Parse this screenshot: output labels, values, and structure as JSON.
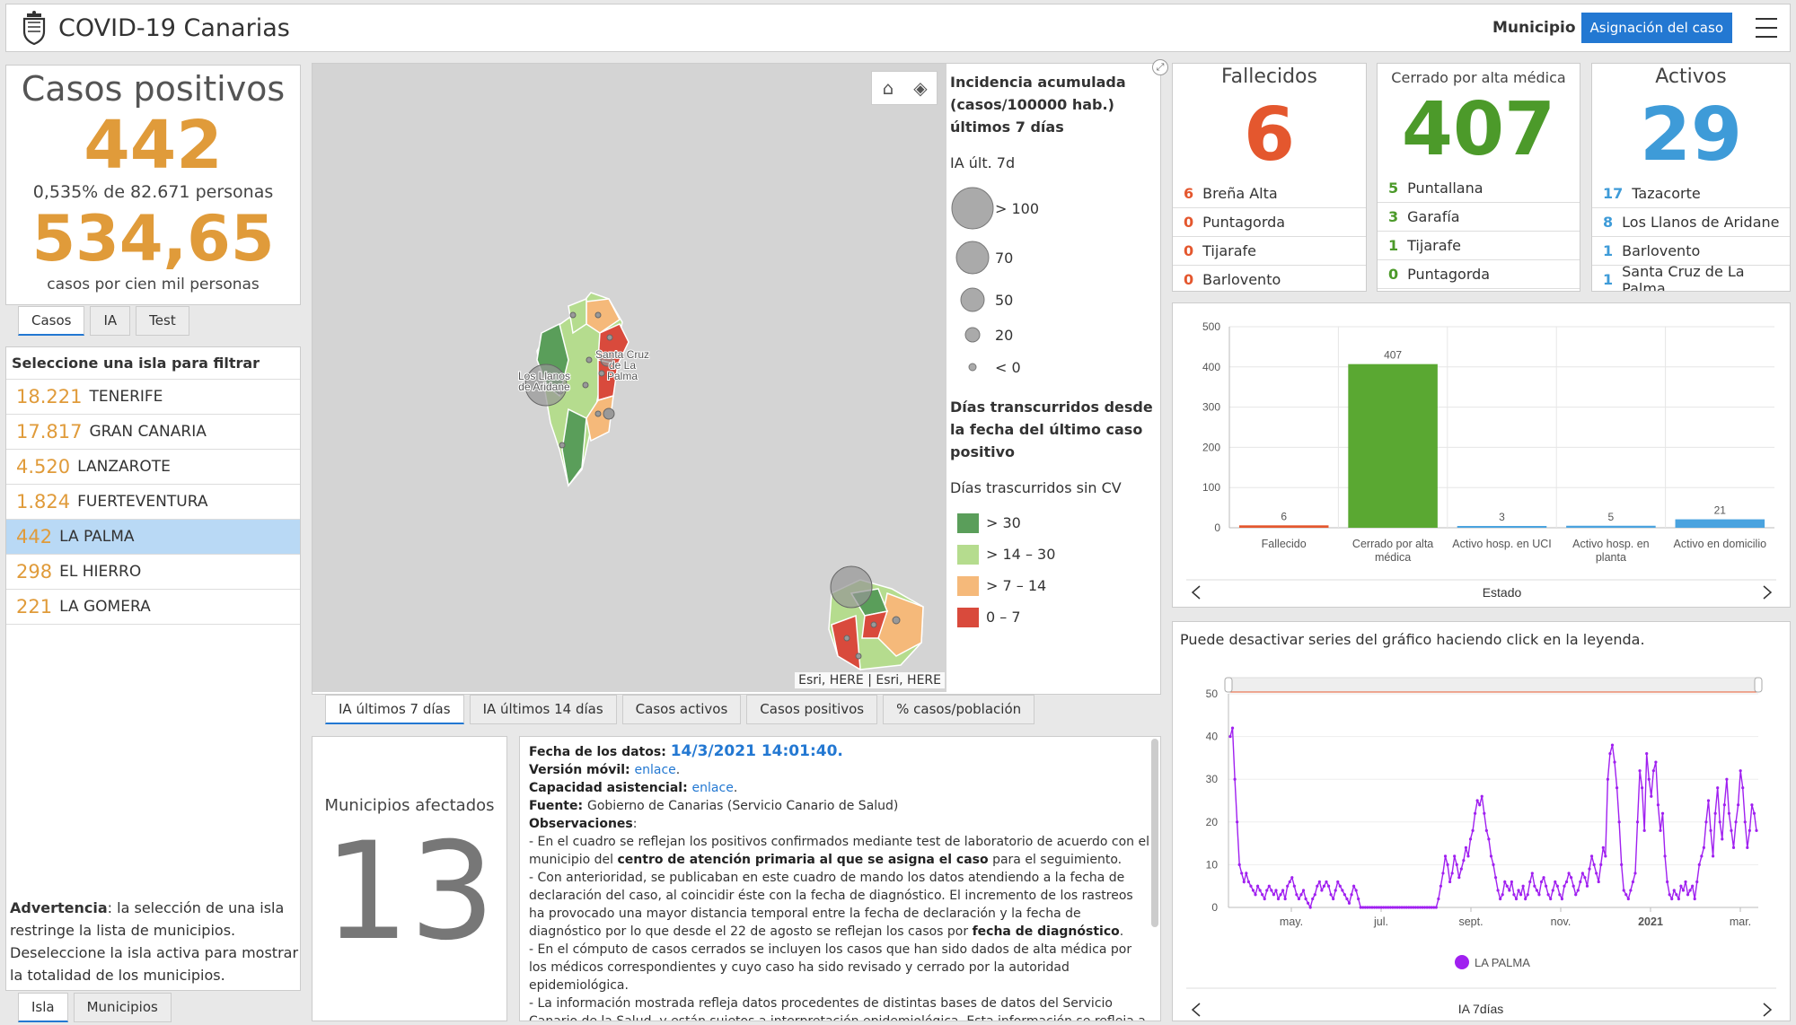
{
  "header": {
    "title": "COVID-19 Canarias",
    "municipio_label": "Municipio",
    "asignacion_button": "Asignación del caso"
  },
  "casos": {
    "title": "Casos positivos",
    "total": "442",
    "percent_text": "0,535% de 82.671 personas",
    "rate": "534,65",
    "rate_text": "casos por cien mil personas",
    "tabs": [
      "Casos",
      "IA",
      "Test"
    ]
  },
  "islands": {
    "header": "Seleccione una isla para filtrar",
    "items": [
      {
        "num": "18.221",
        "name": "TENERIFE"
      },
      {
        "num": "17.817",
        "name": "GRAN CANARIA"
      },
      {
        "num": "4.520",
        "name": "LANZAROTE"
      },
      {
        "num": "1.824",
        "name": "FUERTEVENTURA"
      },
      {
        "num": "442",
        "name": "LA PALMA"
      },
      {
        "num": "298",
        "name": "EL HIERRO"
      },
      {
        "num": "221",
        "name": "LA GOMERA"
      }
    ],
    "warning_bold": "Advertencia",
    "warning_text": ": la selección de una isla restringe la lista de municipios. Deseleccione la isla activa para mostrar la totalidad de los municipios.",
    "tabs": [
      "Isla",
      "Municipios"
    ]
  },
  "map": {
    "label_llanos": "Los Llanos de Aridane",
    "label_santa_cruz": "Santa Cruz de La Palma",
    "attribution": "Esri, HERE | Esri, HERE",
    "legend_title": "Incidencia acumulada (casos/100000 hab.) últimos 7 días",
    "legend_sub": "IA últ. 7d",
    "legend_sizes": [
      "> 100",
      "70",
      "50",
      "20",
      "< 0"
    ],
    "legend2_title": "Días transcurridos desde la fecha del último caso positivo",
    "legend2_sub": "Días trascurridos sin CV",
    "legend_colors": [
      {
        "label": "> 30",
        "color": "#5a9e5a"
      },
      {
        "label": "> 14 – 30",
        "color": "#b5dc8e"
      },
      {
        "label": "> 7 – 14",
        "color": "#f5b97a"
      },
      {
        "label": "0 – 7",
        "color": "#d94a3c"
      }
    ],
    "tabs": [
      "IA últimos 7 días",
      "IA últimos 14 días",
      "Casos activos",
      "Casos positivos",
      "% casos/población"
    ]
  },
  "municipios": {
    "title": "Municipios afectados",
    "count": "13"
  },
  "obs": {
    "fecha_label": "Fecha de los datos",
    "fecha_value": "14/3/2021 14:01:40.",
    "movil_label": "Versión móvil",
    "movil_link": "enlace",
    "capacidad_label": "Capacidad asistencial",
    "capacidad_link": "enlace",
    "fuente_label": "Fuente",
    "fuente_value": "Gobierno de Canarias (Servicio Canario de Salud)",
    "obs_label": "Observaciones",
    "p1a": "- En el cuadro se reflejan los positivos confirmados mediante test de laboratorio de acuerdo con el municipio del ",
    "p1b": "centro de atención primaria al que se asigna el caso",
    "p1c": " para el seguimiento.",
    "p2a": "- Con anterioridad, se publicaban en este cuadro de mando los datos atendiendo a la fecha de declaración del caso, al coincidir éste con la fecha de diagnóstico. El incremento de los rastreos ha provocado una mayor distancia temporal entre la fecha de declaración y la fecha de diagnóstico por lo que desde el 22 de agosto se reflejan los casos por ",
    "p2b": "fecha de diagnóstico",
    "p2c": ".",
    "p3": "- En el cómputo de casos cerrados se incluyen los casos que han sido dados de alta médica por los médicos correspondientes y cuyo caso ha sido revisado y cerrado por la autoridad epidemiológica.",
    "p4": "- La información mostrada refleja datos procedentes de distintas bases de datos del Servicio Canario de la Salud, y están sujetos a interpretación epidemiológica. Esta información se refleja a únicos efectos informativos y de transparencia. Los únicos datos oficiales sanitarios son los que se reflejan en los"
  },
  "fallecidos": {
    "title": "Fallecidos",
    "value": "6",
    "color": "#e4572e",
    "rows": [
      {
        "n": "6",
        "name": "Breña Alta"
      },
      {
        "n": "0",
        "name": "Puntagorda"
      },
      {
        "n": "0",
        "name": "Tijarafe"
      },
      {
        "n": "0",
        "name": "Barlovento"
      }
    ]
  },
  "cerrado": {
    "title": "Cerrado por alta médica",
    "value": "407",
    "color": "#4c9a2a",
    "rows": [
      {
        "n": "5",
        "name": "Puntallana"
      },
      {
        "n": "3",
        "name": "Garafía"
      },
      {
        "n": "1",
        "name": "Tijarafe"
      },
      {
        "n": "0",
        "name": "Puntagorda"
      }
    ]
  },
  "activos": {
    "title": "Activos",
    "value": "29",
    "color": "#3e9bd8",
    "rows": [
      {
        "n": "17",
        "name": "Tazacorte"
      },
      {
        "n": "8",
        "name": "Los Llanos de Aridane"
      },
      {
        "n": "1",
        "name": "Barlovento"
      },
      {
        "n": "1",
        "name": "Santa Cruz de La Palma"
      }
    ]
  },
  "chart_data": [
    {
      "type": "bar",
      "categories": [
        "Fallecido",
        "Cerrado por alta médica",
        "Activo hosp. en UCI",
        "Activo hosp. en planta",
        "Activo en domicilio"
      ],
      "values": [
        6,
        407,
        3,
        5,
        21
      ],
      "colors": [
        "#e4572e",
        "#5aa832",
        "#4aa3df",
        "#4aa3df",
        "#4aa3df"
      ],
      "xlabel": "Estado",
      "ylabel": "",
      "ylim": [
        0,
        500
      ],
      "yticks": [
        "0",
        "100",
        "200",
        "300",
        "400",
        "500"
      ]
    },
    {
      "type": "line",
      "note": "Puede desactivar series del gráfico haciendo click en la leyenda.",
      "xlabel": "IA 7días",
      "xticks": [
        "may.",
        "jul.",
        "sept.",
        "nov.",
        "2021",
        "mar."
      ],
      "yticks": [
        "0",
        "10",
        "20",
        "30",
        "40",
        "50"
      ],
      "ylim": [
        0,
        50
      ],
      "series": [
        {
          "name": "LA PALMA",
          "color": "#a020f0",
          "values": [
            40,
            42,
            30,
            20,
            10,
            8,
            6,
            8,
            6,
            5,
            4,
            3,
            5,
            4,
            3,
            2,
            4,
            5,
            4,
            3,
            4,
            2,
            3,
            4,
            2,
            5,
            6,
            7,
            5,
            3,
            2,
            3,
            4,
            2,
            1,
            0,
            2,
            3,
            5,
            6,
            4,
            5,
            6,
            5,
            3,
            2,
            4,
            6,
            5,
            4,
            3,
            2,
            1,
            3,
            5,
            4,
            2,
            0,
            0,
            0,
            0,
            0,
            0,
            0,
            0,
            0,
            0,
            0,
            0,
            0,
            0,
            0,
            0,
            0,
            0,
            0,
            0,
            0,
            0,
            0,
            0,
            0,
            0,
            0,
            0,
            0,
            0,
            0,
            0,
            0,
            0,
            2,
            5,
            8,
            12,
            10,
            6,
            8,
            12,
            10,
            7,
            9,
            11,
            14,
            12,
            16,
            18,
            22,
            25,
            24,
            26,
            22,
            18,
            16,
            12,
            10,
            7,
            4,
            2,
            3,
            6,
            5,
            4,
            6,
            3,
            2,
            4,
            3,
            5,
            2,
            3,
            6,
            8,
            5,
            4,
            3,
            6,
            7,
            5,
            3,
            2,
            4,
            6,
            5,
            3,
            2,
            5,
            6,
            8,
            7,
            5,
            3,
            4,
            6,
            8,
            7,
            5,
            9,
            12,
            10,
            8,
            6,
            10,
            14,
            12,
            30,
            36,
            38,
            34,
            28,
            20,
            10,
            4,
            3,
            2,
            4,
            6,
            8,
            20,
            32,
            28,
            18,
            36,
            30,
            26,
            32,
            34,
            24,
            18,
            22,
            12,
            6,
            3,
            2,
            4,
            3,
            2,
            5,
            4,
            6,
            3,
            4,
            5,
            2,
            6,
            10,
            12,
            14,
            20,
            25,
            18,
            12,
            22,
            28,
            20,
            16,
            24,
            30,
            22,
            18,
            14,
            20,
            24,
            32,
            28,
            20,
            14,
            18,
            24,
            22,
            18
          ]
        }
      ]
    }
  ]
}
